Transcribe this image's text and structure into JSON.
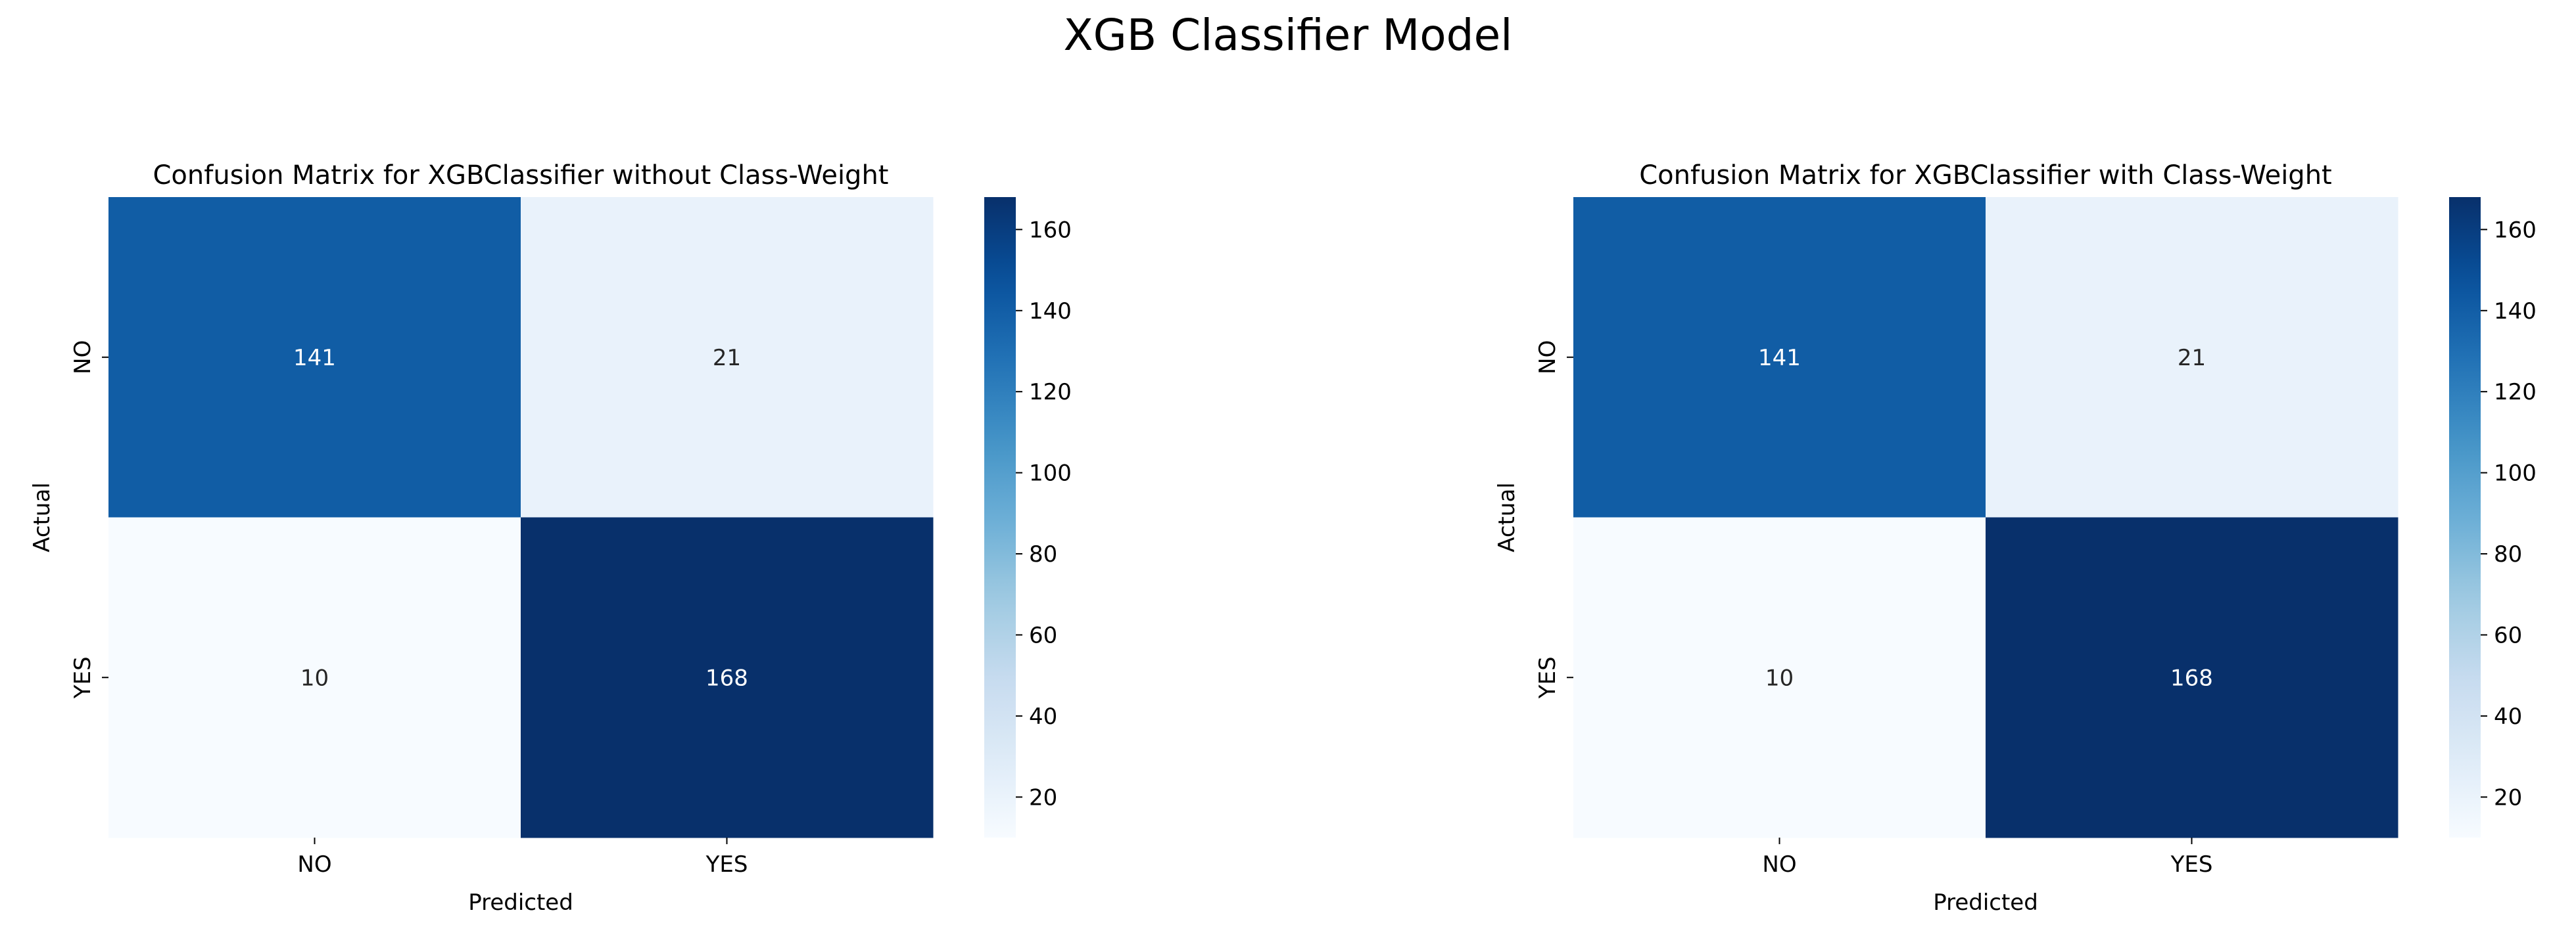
{
  "figure": {
    "suptitle": "XGB Classifier Model"
  },
  "chart_data": [
    {
      "type": "heatmap",
      "title": "Confusion Matrix for XGBClassifier without Class-Weight",
      "xlabel": "Predicted",
      "ylabel": "Actual",
      "x_categories": [
        "NO",
        "YES"
      ],
      "y_categories": [
        "NO",
        "YES"
      ],
      "values": [
        [
          141,
          21
        ],
        [
          10,
          168
        ]
      ],
      "colormap": "Blues",
      "colorbar": {
        "vmin": 10,
        "vmax": 168,
        "ticks": [
          "20",
          "40",
          "60",
          "80",
          "100",
          "120",
          "140",
          "160"
        ]
      }
    },
    {
      "type": "heatmap",
      "title": "Confusion Matrix for XGBClassifier with Class-Weight",
      "xlabel": "Predicted",
      "ylabel": "Actual",
      "x_categories": [
        "NO",
        "YES"
      ],
      "y_categories": [
        "NO",
        "YES"
      ],
      "values": [
        [
          141,
          21
        ],
        [
          10,
          168
        ]
      ],
      "colormap": "Blues",
      "colorbar": {
        "vmin": 10,
        "vmax": 168,
        "ticks": [
          "20",
          "40",
          "60",
          "80",
          "100",
          "120",
          "140",
          "160"
        ]
      }
    }
  ]
}
